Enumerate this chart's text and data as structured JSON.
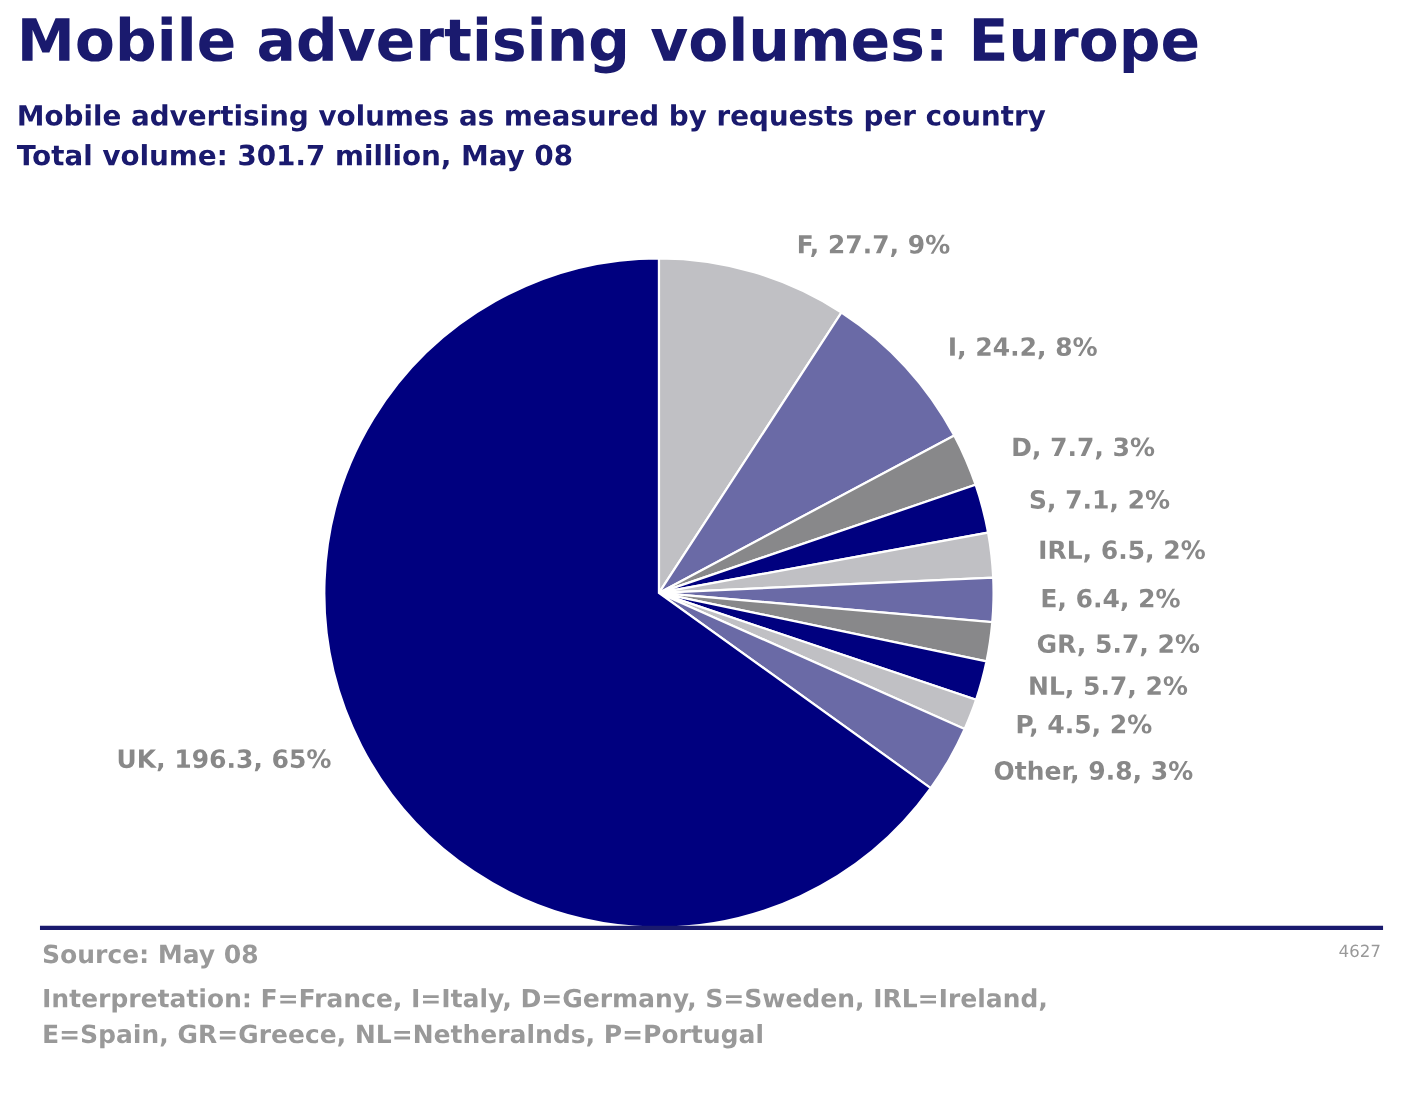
{
  "chart_data": {
    "type": "pie",
    "title": "Mobile advertising volumes: Europe",
    "subtitle": "Mobile advertising volumes as measured by requests per country\nTotal volume: 301.7 million, May 08",
    "categories": [
      "F",
      "I",
      "D",
      "S",
      "IRL",
      "E",
      "GR",
      "NL",
      "P",
      "Other",
      "UK"
    ],
    "values": [
      27.7,
      24.2,
      7.7,
      7.1,
      6.5,
      6.4,
      5.7,
      5.7,
      4.5,
      9.8,
      196.3
    ],
    "value_labels": [
      "27.7, 9%",
      "24.2, 8%",
      "7.7, 3%",
      "7.1, 2%",
      "6.5, 2%",
      "6.4, 2%",
      "5.7, 2%",
      "5.7, 2%",
      "4.5, 2%",
      "9.8, 3%",
      "196.3, 65%"
    ],
    "colors": [
      "#c0c0c4",
      "#6a6aa6",
      "#88888a",
      "#00007f",
      "#c0c0c4",
      "#6a6aa6",
      "#88888a",
      "#00007f",
      "#c0c0c4",
      "#6a6aa6",
      "#00007f"
    ],
    "annotations": [
      "Source: May 08",
      "Interpretation: F=France, I=Italy, D=Germany, S=Sweden, IRL=Ireland,\nE=Spain, GR=Greece, NL=Netheralnds, P=Portugal",
      "4627"
    ],
    "legend": false
  }
}
